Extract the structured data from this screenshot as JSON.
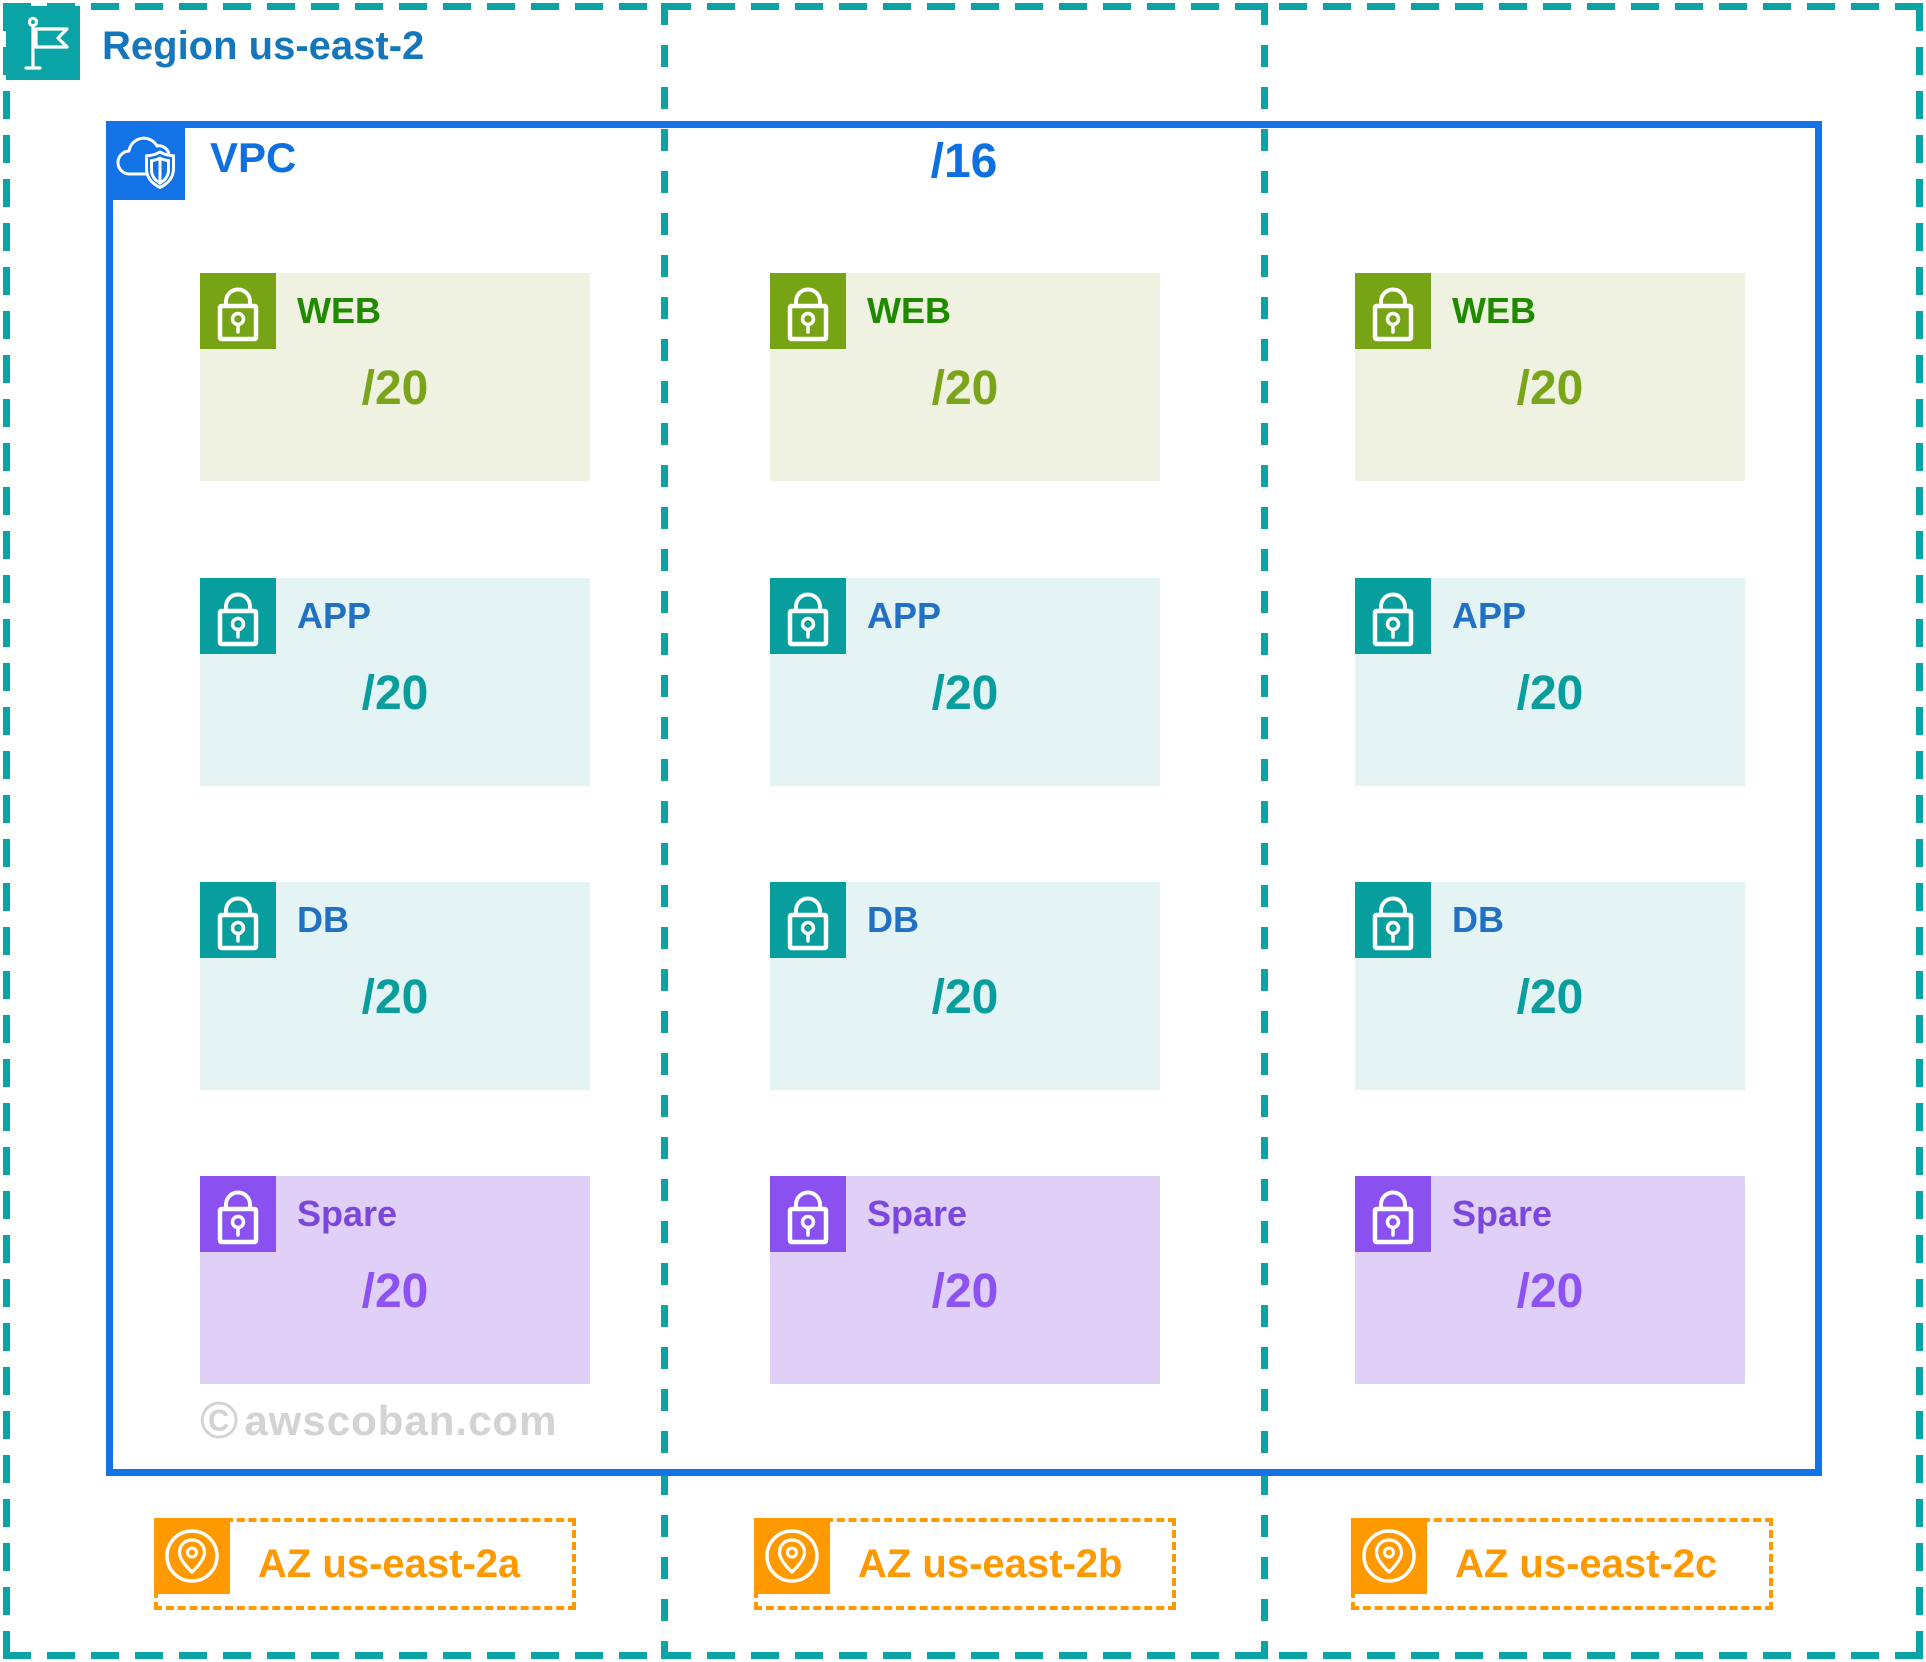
{
  "region": {
    "label": "Region us-east-2"
  },
  "vpc": {
    "label": "VPC",
    "cidr": "/16"
  },
  "availability_zones": [
    "AZ us-east-2a",
    "AZ us-east-2b",
    "AZ us-east-2c"
  ],
  "subnet_rows": [
    {
      "type": "web",
      "label": "WEB",
      "cidr": "/20"
    },
    {
      "type": "app",
      "label": "APP",
      "cidr": "/20"
    },
    {
      "type": "db",
      "label": "DB",
      "cidr": "/20"
    },
    {
      "type": "spare",
      "label": "Spare",
      "cidr": "/20"
    }
  ],
  "watermark": {
    "symbol": "©",
    "text": "awscoban.com"
  },
  "colors": {
    "region_teal": "#0aa4a6",
    "vpc_blue": "#1273e7",
    "region_label_blue": "#1577bb",
    "az_orange": "#ff9900",
    "watermark_gray": "#d3d3d3",
    "web": {
      "icon_bg": "#76a414",
      "label": "#1f8a00",
      "cidr": "#7aa51b",
      "box_bg": "#f0f2e1"
    },
    "app": {
      "icon_bg": "#089e9e",
      "label": "#2270c2",
      "cidr": "#0a9d9d",
      "box_bg": "#e4f4f4"
    },
    "db": {
      "icon_bg": "#089e9e",
      "label": "#2270c2",
      "cidr": "#0a9d9d",
      "box_bg": "#e4f4f4"
    },
    "spare": {
      "icon_bg": "#8b50f0",
      "label": "#7b46dd",
      "cidr": "#8d52f2",
      "box_bg": "#e0d0f7"
    }
  }
}
